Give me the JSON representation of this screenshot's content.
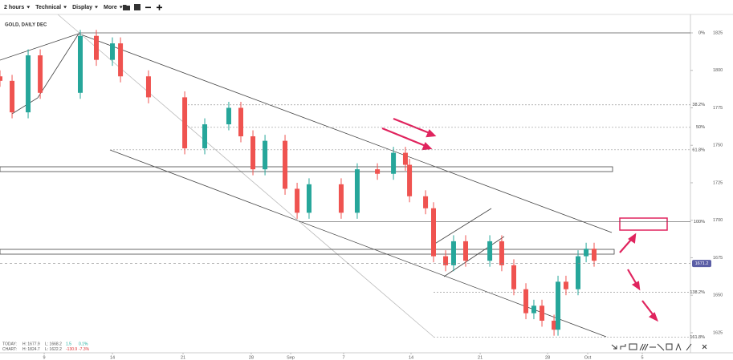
{
  "toolbar": {
    "items": [
      "2 hours",
      "Technical",
      "Display",
      "More"
    ]
  },
  "chart_data": {
    "type": "candlestick",
    "title": "GOLD, DAILY DEC",
    "x": [
      0,
      0.94,
      2.19,
      3.13,
      6.25,
      7.5,
      8.75,
      9.38,
      11.56,
      14.38,
      15.94,
      17.81,
      18.75,
      19.69,
      20.63,
      22.19,
      23.13,
      24.06,
      26.56,
      27.81,
      29.38,
      30.63,
      31.56,
      31.88,
      33.13,
      33.75,
      34.69,
      35.31,
      36.25,
      38.13,
      39.06,
      40,
      40.94,
      41.56,
      42.19,
      43.13,
      43.44,
      44.06,
      45,
      45.63,
      46.25
    ],
    "open": [
      1796,
      1793,
      1772,
      1810,
      1785,
      1823,
      1807,
      1818,
      1796,
      1782,
      1748,
      1764,
      1775,
      1756,
      1734,
      1753,
      1721,
      1705,
      1724,
      1705,
      1734,
      1731,
      1745,
      1737,
      1716,
      1708,
      1676,
      1670,
      1686,
      1673,
      1686,
      1670,
      1654,
      1638,
      1643,
      1633,
      1627,
      1659,
      1654,
      1676,
      1681
    ],
    "high": [
      1800,
      1797,
      1814,
      1814,
      1827,
      1827,
      1822,
      1822,
      1800,
      1786,
      1768,
      1779,
      1779,
      1760,
      1757,
      1757,
      1725,
      1728,
      1728,
      1738,
      1738,
      1749,
      1749,
      1741,
      1720,
      1712,
      1680,
      1690,
      1690,
      1690,
      1690,
      1674,
      1658,
      1647,
      1647,
      1637,
      1663,
      1663,
      1680,
      1685,
      1685
    ],
    "low": [
      1789,
      1768,
      1768,
      1781,
      1781,
      1803,
      1803,
      1792,
      1778,
      1744,
      1744,
      1760,
      1752,
      1730,
      1730,
      1717,
      1701,
      1701,
      1701,
      1701,
      1727,
      1727,
      1733,
      1712,
      1704,
      1672,
      1666,
      1666,
      1669,
      1669,
      1666,
      1650,
      1634,
      1634,
      1629,
      1623,
      1623,
      1650,
      1650,
      1672,
      1669
    ],
    "close": [
      1793,
      1772,
      1810,
      1785,
      1823,
      1807,
      1818,
      1796,
      1782,
      1748,
      1764,
      1775,
      1756,
      1734,
      1753,
      1721,
      1705,
      1724,
      1705,
      1734,
      1731,
      1745,
      1737,
      1716,
      1708,
      1676,
      1670,
      1686,
      1673,
      1686,
      1670,
      1654,
      1638,
      1643,
      1633,
      1627,
      1659,
      1654,
      1676,
      1681,
      1673
    ],
    "up_color": "#26a69a",
    "down_color": "#ef5350",
    "xlim": [
      0,
      53.75
    ],
    "xticks": [
      {
        "value": 3.44,
        "label": "9"
      },
      {
        "value": 8.75,
        "label": "14"
      },
      {
        "value": 14.25,
        "label": "21"
      },
      {
        "value": 19.56,
        "label": "28"
      },
      {
        "value": 22.63,
        "label": "Sep"
      },
      {
        "value": 26.75,
        "label": "7"
      },
      {
        "value": 32,
        "label": "14"
      },
      {
        "value": 37.38,
        "label": "21"
      },
      {
        "value": 42.63,
        "label": "28"
      },
      {
        "value": 45.75,
        "label": "Oct"
      },
      {
        "value": 50,
        "label": "5"
      }
    ],
    "ylim": [
      1611.6,
      1837.3
    ],
    "yticks": [
      1625,
      1650,
      1675,
      1700,
      1725,
      1750,
      1775,
      1800,
      1825
    ],
    "last_price": 1671.2,
    "fib_levels": [
      {
        "value": 1825,
        "label": "0%"
      },
      {
        "value": 1777,
        "label": "38.2%"
      },
      {
        "value": 1762,
        "label": "50%"
      },
      {
        "value": 1747,
        "label": "61.8%"
      },
      {
        "value": 1699,
        "label": "100%"
      },
      {
        "value": 1652,
        "label": "138.2%"
      },
      {
        "value": 1622,
        "label": "161.8%"
      }
    ],
    "info": {
      "today": [
        "TODAY:",
        "H: 1677.9",
        "L: 1668.2",
        "1.5",
        "0.1%"
      ],
      "chart": [
        "CHART:",
        "H: 1824.7",
        "L: 1622.2",
        "-130.9",
        "-7.3%"
      ]
    }
  }
}
